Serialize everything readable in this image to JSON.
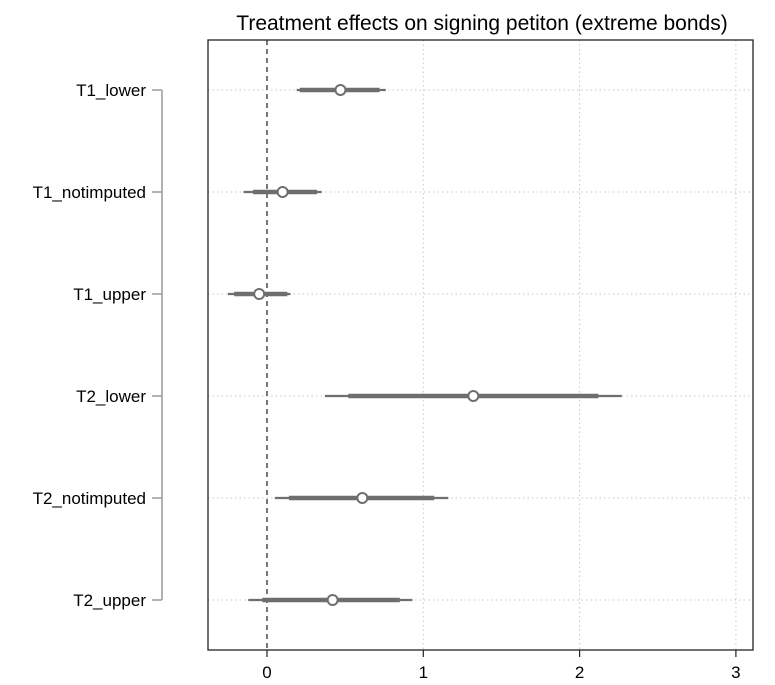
{
  "chart_data": {
    "type": "scatter",
    "subtype": "coefficient-plot",
    "title": "Treatment effects on signing petiton (extreme bonds)",
    "xlabel": "",
    "ylabel": "",
    "xlim": [
      -0.37,
      3.05
    ],
    "xticks": [
      0,
      1,
      2,
      3
    ],
    "reference_line_x": 0,
    "grid": "on",
    "legend": "none",
    "categories": [
      "T1_lower",
      "T1_notimputed",
      "T1_upper",
      "T2_lower",
      "T2_notimputed",
      "T2_upper"
    ],
    "estimates": [
      {
        "label": "T1_lower",
        "point": 0.47,
        "ci_inner": [
          0.21,
          0.72
        ],
        "ci_outer": [
          0.19,
          0.76
        ]
      },
      {
        "label": "T1_notimputed",
        "point": 0.1,
        "ci_inner": [
          -0.09,
          0.32
        ],
        "ci_outer": [
          -0.15,
          0.35
        ]
      },
      {
        "label": "T1_upper",
        "point": -0.05,
        "ci_inner": [
          -0.21,
          0.13
        ],
        "ci_outer": [
          -0.25,
          0.15
        ]
      },
      {
        "label": "T2_lower",
        "point": 1.32,
        "ci_inner": [
          0.52,
          2.12
        ],
        "ci_outer": [
          0.37,
          2.27
        ]
      },
      {
        "label": "T2_notimputed",
        "point": 0.61,
        "ci_inner": [
          0.14,
          1.07
        ],
        "ci_outer": [
          0.05,
          1.16
        ]
      },
      {
        "label": "T2_upper",
        "point": 0.42,
        "ci_inner": [
          -0.03,
          0.85
        ],
        "ci_outer": [
          -0.12,
          0.93
        ]
      }
    ],
    "colors": {
      "marker": "#6e6e6e",
      "ci": "#6e6e6e",
      "grid": "#c8c8c8",
      "reference_line": "#777777",
      "frame": "#222222",
      "bracket": "#9a9a9a"
    }
  }
}
